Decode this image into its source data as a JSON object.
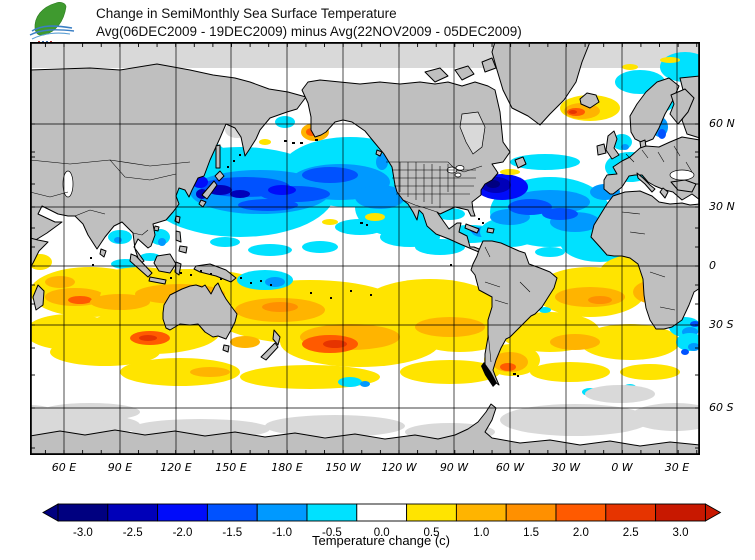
{
  "header": {
    "title_line1": "Change in SemiMonthly Sea Surface Temperature",
    "title_line2": "Avg(06DEC2009 - 19DEC2009) minus Avg(22NOV2009 - 05DEC2009)",
    "logo": "green-leaf-ocean-waves-logo"
  },
  "map": {
    "lat_labels": [
      "60 N",
      "30 N",
      "0",
      "30 S",
      "60 S"
    ],
    "lon_labels": [
      "60 E",
      "90 E",
      "120 E",
      "150 E",
      "180 E",
      "150 W",
      "120 W",
      "90 W",
      "60 W",
      "30 W",
      "0 W",
      "30 E"
    ],
    "land_color": "#bfbfbf",
    "nodata_color": "#d9d9d9",
    "ocean_color": "#ffffff",
    "grid_color": "#000000"
  },
  "colorbar": {
    "tick_labels": [
      "-3.0",
      "-2.5",
      "-2.0",
      "-1.5",
      "-1.0",
      "-0.5",
      "0.0",
      "0.5",
      "1.0",
      "1.5",
      "2.0",
      "2.5",
      "3.0"
    ],
    "colors": [
      "#000080",
      "#0000b9",
      "#000cfa",
      "#0052ff",
      "#0099ff",
      "#00e1ff",
      "#ffffff",
      "#ffe400",
      "#ffb400",
      "#ff9000",
      "#ff5a00",
      "#e63400",
      "#c81800"
    ],
    "caption": "Temperature change  (c)"
  },
  "chart_data": {
    "type": "heatmap",
    "title": "Change in SemiMonthly Sea Surface Temperature",
    "subtitle": "Avg(06DEC2009 - 19DEC2009) minus Avg(22NOV2009 - 05DEC2009)",
    "colorbar_values": [
      -3.0,
      -2.5,
      -2.0,
      -1.5,
      -1.0,
      -0.5,
      0.0,
      0.5,
      1.0,
      1.5,
      2.0,
      2.5,
      3.0
    ],
    "colorbar_unit": "c",
    "x_ticks": [
      "60 E",
      "90 E",
      "120 E",
      "150 E",
      "180 E",
      "150 W",
      "120 W",
      "90 W",
      "60 W",
      "30 W",
      "0 W",
      "30 E"
    ],
    "y_ticks": [
      "60 N",
      "30 N",
      "0",
      "30 S",
      "60 S"
    ],
    "legend_label": "Temperature change  (c)"
  }
}
